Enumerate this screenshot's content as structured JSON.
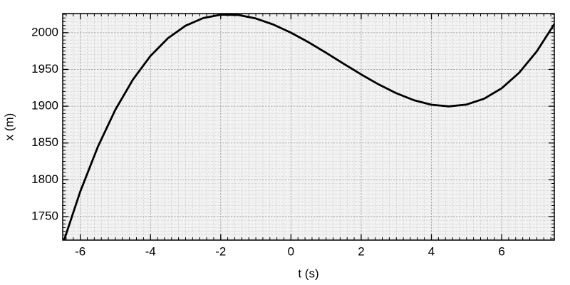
{
  "chart_data": {
    "type": "line",
    "xlabel": "t (s)",
    "ylabel": "x (m)",
    "x": [
      -6.5,
      -6,
      -5.5,
      -5,
      -4.5,
      -4,
      -3.5,
      -3,
      -2.5,
      -2,
      -1.5,
      -1,
      -0.5,
      0,
      0.5,
      1,
      1.5,
      2,
      2.5,
      3,
      3.5,
      4,
      4.5,
      5,
      5.5,
      6,
      6.5,
      7,
      7.5
    ],
    "series": [
      {
        "color": "#000000",
        "values": [
          1712.2,
          1784.0,
          1844.8,
          1895.3,
          1936.2,
          1968.4,
          1992.6,
          2009.5,
          2019.8,
          2024.4,
          2024.0,
          2019.3,
          2011.0,
          2000.0,
          1987.0,
          1972.7,
          1957.8,
          1943.2,
          1929.6,
          1917.7,
          1908.2,
          1902.0,
          1899.8,
          1902.3,
          1910.2,
          1924.4,
          1945.6,
          1974.5,
          2011.8
        ]
      }
    ],
    "xlim": [
      -6.5,
      7.5
    ],
    "ylim": [
      1718,
      2026
    ],
    "xticks": [
      -6,
      -4,
      -2,
      0,
      2,
      4,
      6
    ],
    "yticks": [
      1750,
      1800,
      1850,
      1900,
      1950,
      2000
    ],
    "grid": true
  }
}
